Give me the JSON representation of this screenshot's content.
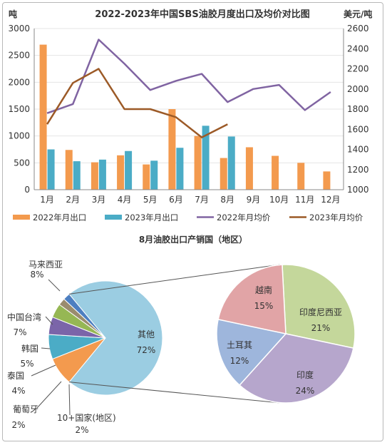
{
  "chart_data": [
    {
      "type": "bar",
      "title": "2022-2023年中国SBS油胶月度出口及均价对比图",
      "y_left_unit": "吨",
      "y_right_unit": "美元/吨",
      "categories": [
        "1月",
        "2月",
        "3月",
        "4月",
        "5月",
        "6月",
        "7月",
        "8月",
        "9月",
        "10月",
        "11月",
        "12月"
      ],
      "ylim_left": [
        0,
        3000
      ],
      "ylim_right": [
        1000,
        2600
      ],
      "yticks_left": [
        "0",
        "500",
        "1000",
        "1500",
        "2000",
        "2500",
        "3000"
      ],
      "yticks_right": [
        "1000",
        "1200",
        "1400",
        "1600",
        "1800",
        "2000",
        "2200",
        "2400",
        "2600"
      ],
      "series": [
        {
          "name": "2022年月出口",
          "kind": "bar",
          "axis": "left",
          "color": "#f39a4e",
          "values": [
            2700,
            740,
            510,
            640,
            470,
            1500,
            1000,
            590,
            790,
            630,
            500,
            340
          ]
        },
        {
          "name": "2023年月出口",
          "kind": "bar",
          "axis": "left",
          "color": "#4bacc6",
          "values": [
            750,
            530,
            560,
            720,
            540,
            780,
            1190,
            990,
            null,
            null,
            null,
            null
          ]
        },
        {
          "name": "2022年月均价",
          "kind": "line",
          "axis": "right",
          "color": "#8064a2",
          "values": [
            1760,
            1850,
            2490,
            2250,
            1990,
            2080,
            2150,
            1870,
            2000,
            2040,
            1790,
            1970
          ]
        },
        {
          "name": "2023年月均价",
          "kind": "line",
          "axis": "right",
          "color": "#9c5a27",
          "values": [
            1650,
            2060,
            2200,
            1800,
            1800,
            1720,
            1520,
            1650,
            null,
            null,
            null,
            null
          ]
        }
      ],
      "legend_position": "bottom"
    },
    {
      "type": "pie",
      "title": "8月油胶出口产销国（地区）",
      "slices": [
        {
          "label": "其他",
          "value": 72,
          "pct": "72%",
          "color": "#9bcde2"
        },
        {
          "label": "马来西亚",
          "value": 8,
          "pct": "8%",
          "color": "#f39a4e"
        },
        {
          "label": "中国台湾",
          "value": 7,
          "pct": "7%",
          "color": "#4bacc6"
        },
        {
          "label": "韩国",
          "value": 5,
          "pct": "5%",
          "color": "#7b65a9"
        },
        {
          "label": "泰国",
          "value": 4,
          "pct": "4%",
          "color": "#96b754"
        },
        {
          "label": "葡萄牙",
          "value": 2,
          "pct": "2%",
          "color": "#9a8c6e"
        },
        {
          "label": "10+国家(地区)",
          "value": 2,
          "pct": "2%",
          "color": "#4d7fc1"
        }
      ],
      "breakout_of": "其他",
      "breakout_slices": [
        {
          "label": "印度尼西亚",
          "value": 21,
          "pct": "21%",
          "color": "#c4d79b"
        },
        {
          "label": "印度",
          "value": 24,
          "pct": "24%",
          "color": "#b6a6cc"
        },
        {
          "label": "土耳其",
          "value": 12,
          "pct": "12%",
          "color": "#9eb6dc"
        },
        {
          "label": "越南",
          "value": 15,
          "pct": "15%",
          "color": "#e1a4a6"
        }
      ]
    }
  ]
}
